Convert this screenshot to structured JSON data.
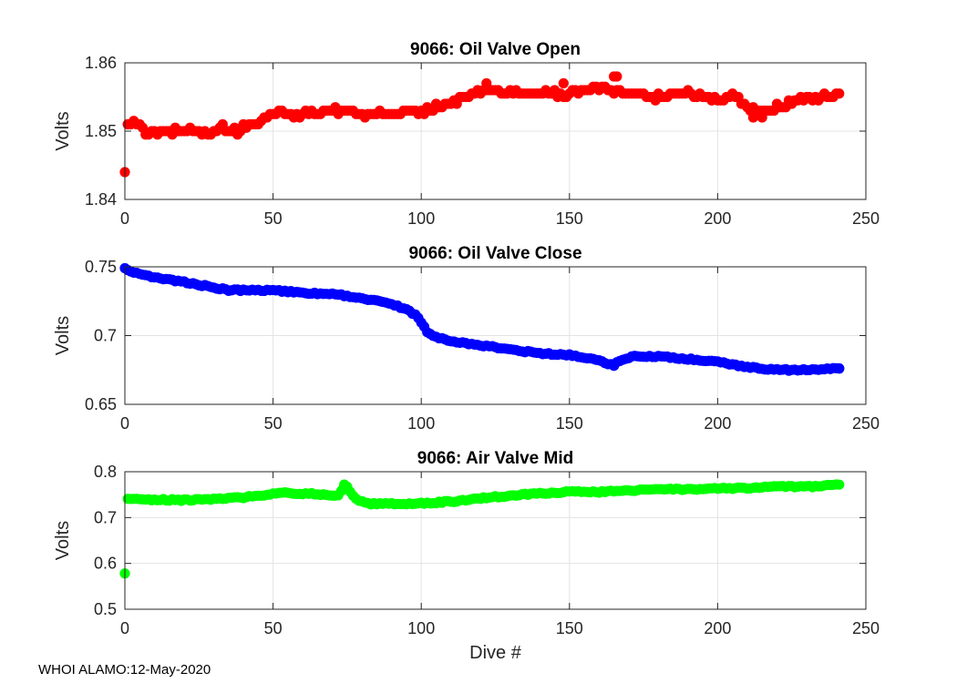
{
  "figure": {
    "footer": "WHOI ALAMO:12-May-2020",
    "xlabel": "Dive #",
    "xticks": [
      "0",
      "50",
      "100",
      "150",
      "200",
      "250"
    ]
  },
  "chart_data": [
    {
      "type": "scatter",
      "title": "9066: Oil Valve Open",
      "xlabel": "",
      "ylabel": "Volts",
      "xlim": [
        0,
        250
      ],
      "ylim": [
        1.84,
        1.86
      ],
      "yticks": [
        "1.84",
        "1.85",
        "1.86"
      ],
      "grid": true,
      "color": "#ff0000",
      "anchors": [
        [
          0,
          1.844
        ],
        [
          1,
          1.851
        ],
        [
          3,
          1.8515
        ],
        [
          5,
          1.851
        ],
        [
          7,
          1.85
        ],
        [
          10,
          1.8495
        ],
        [
          15,
          1.85
        ],
        [
          20,
          1.8505
        ],
        [
          25,
          1.8502
        ],
        [
          28,
          1.8495
        ],
        [
          33,
          1.8505
        ],
        [
          38,
          1.85
        ],
        [
          42,
          1.851
        ],
        [
          47,
          1.8515
        ],
        [
          50,
          1.8525
        ],
        [
          60,
          1.8525
        ],
        [
          70,
          1.853
        ],
        [
          80,
          1.8525
        ],
        [
          90,
          1.8525
        ],
        [
          100,
          1.853
        ],
        [
          110,
          1.854
        ],
        [
          115,
          1.855
        ],
        [
          122,
          1.856
        ],
        [
          130,
          1.8555
        ],
        [
          140,
          1.8555
        ],
        [
          150,
          1.8555
        ],
        [
          160,
          1.8565
        ],
        [
          170,
          1.8555
        ],
        [
          180,
          1.855
        ],
        [
          190,
          1.8555
        ],
        [
          200,
          1.8545
        ],
        [
          205,
          1.855
        ],
        [
          210,
          1.8535
        ],
        [
          215,
          1.853
        ],
        [
          220,
          1.8535
        ],
        [
          225,
          1.854
        ],
        [
          230,
          1.855
        ],
        [
          235,
          1.855
        ],
        [
          241,
          1.8552
        ]
      ],
      "outliers": [
        [
          0,
          1.844
        ],
        [
          1,
          1.851
        ],
        [
          122,
          1.857
        ],
        [
          148,
          1.857
        ],
        [
          165,
          1.858
        ],
        [
          166,
          1.858
        ],
        [
          212,
          1.852
        ],
        [
          215,
          1.852
        ]
      ]
    },
    {
      "type": "scatter",
      "title": "9066: Oil Valve Close",
      "xlabel": "",
      "ylabel": "Volts",
      "xlim": [
        0,
        250
      ],
      "ylim": [
        0.65,
        0.75
      ],
      "yticks": [
        "0.65",
        "0.7",
        "0.75"
      ],
      "grid": true,
      "color": "#0000ff",
      "anchors": [
        [
          0,
          0.749
        ],
        [
          3,
          0.746
        ],
        [
          10,
          0.742
        ],
        [
          20,
          0.739
        ],
        [
          30,
          0.735
        ],
        [
          35,
          0.733
        ],
        [
          50,
          0.733
        ],
        [
          60,
          0.731
        ],
        [
          70,
          0.73
        ],
        [
          75,
          0.729
        ],
        [
          80,
          0.727
        ],
        [
          90,
          0.723
        ],
        [
          95,
          0.719
        ],
        [
          98,
          0.715
        ],
        [
          100,
          0.71
        ],
        [
          102,
          0.703
        ],
        [
          105,
          0.699
        ],
        [
          110,
          0.696
        ],
        [
          120,
          0.693
        ],
        [
          130,
          0.69
        ],
        [
          140,
          0.687
        ],
        [
          150,
          0.686
        ],
        [
          160,
          0.682
        ],
        [
          164,
          0.679
        ],
        [
          168,
          0.682
        ],
        [
          172,
          0.685
        ],
        [
          180,
          0.685
        ],
        [
          190,
          0.683
        ],
        [
          200,
          0.681
        ],
        [
          210,
          0.677
        ],
        [
          215,
          0.676
        ],
        [
          220,
          0.675
        ],
        [
          230,
          0.675
        ],
        [
          241,
          0.676
        ]
      ],
      "outliers": [
        [
          0,
          0.749
        ],
        [
          165,
          0.678
        ],
        [
          241,
          0.676
        ]
      ]
    },
    {
      "type": "scatter",
      "title": "9066: Air Valve Mid",
      "xlabel": "Dive #",
      "ylabel": "Volts",
      "xlim": [
        0,
        250
      ],
      "ylim": [
        0.5,
        0.8
      ],
      "yticks": [
        "0.5",
        "0.6",
        "0.7",
        "0.8"
      ],
      "grid": true,
      "color": "#00ff00",
      "anchors": [
        [
          0,
          0.578
        ],
        [
          1,
          0.742
        ],
        [
          10,
          0.739
        ],
        [
          20,
          0.738
        ],
        [
          30,
          0.74
        ],
        [
          40,
          0.744
        ],
        [
          45,
          0.748
        ],
        [
          55,
          0.754
        ],
        [
          65,
          0.751
        ],
        [
          72,
          0.749
        ],
        [
          74,
          0.77
        ],
        [
          75,
          0.766
        ],
        [
          78,
          0.74
        ],
        [
          82,
          0.73
        ],
        [
          90,
          0.73
        ],
        [
          100,
          0.731
        ],
        [
          110,
          0.735
        ],
        [
          120,
          0.742
        ],
        [
          130,
          0.748
        ],
        [
          140,
          0.753
        ],
        [
          150,
          0.756
        ],
        [
          160,
          0.756
        ],
        [
          170,
          0.759
        ],
        [
          180,
          0.761
        ],
        [
          190,
          0.762
        ],
        [
          200,
          0.763
        ],
        [
          210,
          0.764
        ],
        [
          220,
          0.768
        ],
        [
          230,
          0.767
        ],
        [
          241,
          0.771
        ]
      ],
      "outliers": [
        [
          0,
          0.578
        ],
        [
          74,
          0.772
        ]
      ]
    }
  ]
}
